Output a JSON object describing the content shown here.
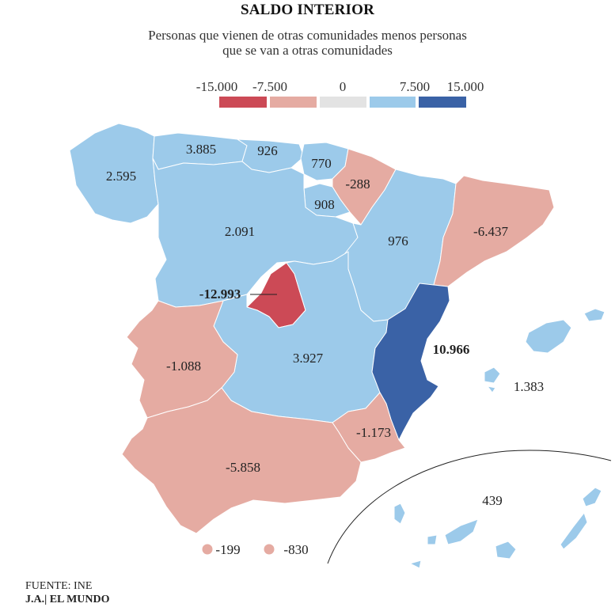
{
  "title": "SALDO INTERIOR",
  "subtitle_line1": "Personas que vienen de otras comunidades menos personas",
  "subtitle_line2": "que se van a otras comunidades",
  "legend": {
    "ticks": [
      "-15.000",
      "-7.500",
      "0",
      "7.500",
      "15.000"
    ],
    "colors": [
      "#cc4a56",
      "#e5aba2",
      "#e3e3e3",
      "#9ccaea",
      "#3a62a6"
    ]
  },
  "regions": {
    "galicia": "2.595",
    "asturias": "3.885",
    "cantabria": "926",
    "pais_vasco": "770",
    "navarra": "-288",
    "la_rioja": "908",
    "castilla_leon": "2.091",
    "aragon": "976",
    "cataluna": "-6.437",
    "madrid": "-12.993",
    "castilla_la_mancha": "3.927",
    "extremadura": "-1.088",
    "valencia": "10.966",
    "baleares": "1.383",
    "murcia": "-1.173",
    "andalucia": "-5.858",
    "canarias": "439",
    "ceuta": "-199",
    "melilla": "-830"
  },
  "source": "FUENTE: INE",
  "credit": "J.A.| EL MUNDO"
}
